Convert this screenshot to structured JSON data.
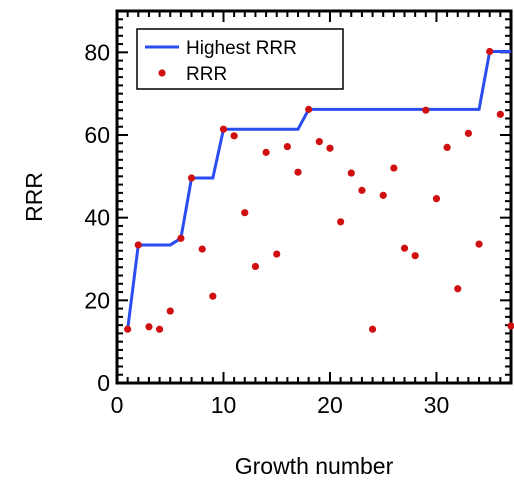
{
  "chart_data": {
    "type": "scatter",
    "xlabel": "Growth number",
    "ylabel": "RRR",
    "xlim": [
      0,
      37
    ],
    "ylim": [
      0,
      90
    ],
    "x_ticks": [
      0,
      10,
      20,
      30
    ],
    "y_ticks": [
      0,
      20,
      40,
      60,
      80
    ],
    "grid": false,
    "legend_position": "top-left",
    "series": [
      {
        "name": "Highest RRR",
        "kind": "line",
        "color": "#2b4df0",
        "x": [
          1,
          2,
          3,
          4,
          5,
          6,
          7,
          8,
          9,
          10,
          11,
          12,
          13,
          14,
          15,
          16,
          17,
          18,
          19,
          20,
          21,
          22,
          23,
          24,
          25,
          26,
          27,
          28,
          29,
          30,
          31,
          32,
          33,
          34,
          35,
          36,
          37
        ],
        "y": [
          13,
          33.4,
          33.4,
          33.4,
          33.4,
          35,
          49.6,
          49.6,
          49.6,
          61.4,
          61.4,
          61.4,
          61.4,
          61.4,
          61.4,
          61.4,
          61.4,
          66.2,
          66.2,
          66.2,
          66.2,
          66.2,
          66.2,
          66.2,
          66.2,
          66.2,
          66.2,
          66.2,
          66.2,
          66.2,
          66.2,
          66.2,
          66.2,
          66.2,
          80.2,
          80.2,
          80.2
        ]
      },
      {
        "name": "RRR",
        "kind": "points",
        "color": "#d01010",
        "x": [
          1,
          2,
          3,
          4,
          5,
          6,
          7,
          8,
          9,
          10,
          11,
          12,
          13,
          14,
          15,
          16,
          17,
          18,
          19,
          20,
          21,
          22,
          23,
          24,
          25,
          26,
          27,
          28,
          29,
          30,
          31,
          32,
          33,
          34,
          35,
          36,
          37
        ],
        "y": [
          13,
          33.4,
          13.6,
          13,
          17.4,
          35,
          49.6,
          32.4,
          21,
          61.4,
          59.8,
          41.2,
          28.2,
          55.8,
          31.2,
          57.2,
          51,
          66.2,
          58.4,
          56.8,
          39,
          50.8,
          46.6,
          13,
          45.4,
          52,
          32.6,
          30.8,
          66,
          44.6,
          57,
          22.8,
          60.4,
          33.6,
          80.2,
          65,
          13.8
        ]
      }
    ]
  }
}
